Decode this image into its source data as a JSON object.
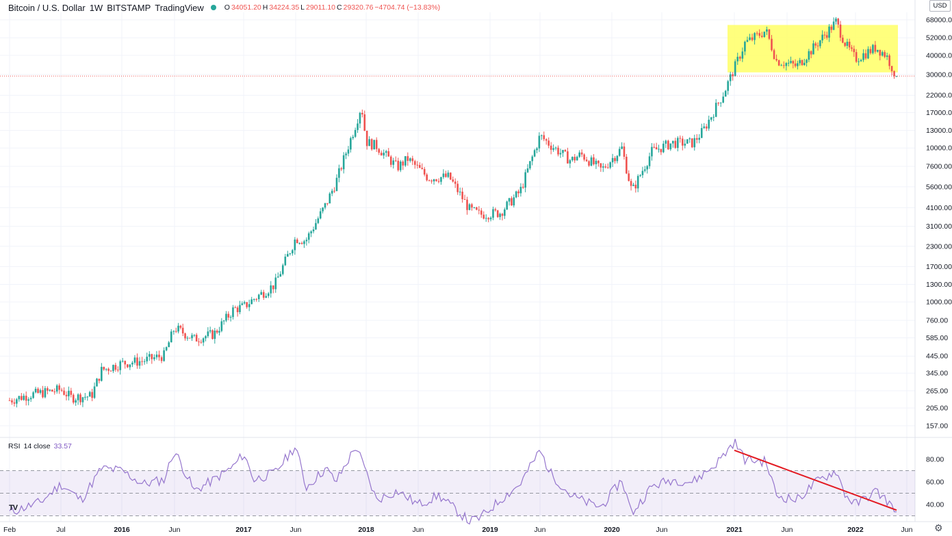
{
  "header": {
    "symbol": "Bitcoin / U.S. Dollar",
    "interval": "1W",
    "exchange": "BITSTAMP",
    "source": "TradingView",
    "open_label": "O",
    "open": "34051.20",
    "high_label": "H",
    "high": "34224.35",
    "low_label": "L",
    "low": "29011.10",
    "close_label": "C",
    "close": "29320.76",
    "change": "−4704.74 (−13.83%)"
  },
  "currency_button": "USD",
  "rsi_header": {
    "name": "RSI",
    "params": "14 close",
    "value": "33.57"
  },
  "chart_data": {
    "type": "candlestick",
    "price_scale": "log",
    "y_tick_labels": [
      "68000.00",
      "52000.00",
      "40000.00",
      "30000.00",
      "22000.00",
      "17000.00",
      "13000.00",
      "10000.00",
      "7600.00",
      "5600.00",
      "4100.00",
      "3100.00",
      "2300.00",
      "1700.00",
      "1300.00",
      "1000.00",
      "760.00",
      "585.00",
      "445.00",
      "345.00",
      "265.00",
      "205.00",
      "157.00"
    ],
    "x_tick_labels": [
      "Feb",
      "Jul",
      "2016",
      "Jun",
      "2017",
      "Jun",
      "2018",
      "Jun",
      "2019",
      "Jun",
      "2020",
      "Jun",
      "2021",
      "Jun",
      "2022",
      "Jun"
    ],
    "x_tick_bold": [
      "2016",
      "2017",
      "2018",
      "2019",
      "2020",
      "2021",
      "2022"
    ],
    "price_key_points": [
      [
        "2015-02",
        230
      ],
      [
        "2015-04",
        250
      ],
      [
        "2015-07",
        270
      ],
      [
        "2015-08",
        240
      ],
      [
        "2015-10",
        245
      ],
      [
        "2015-11",
        360
      ],
      [
        "2016-01",
        400
      ],
      [
        "2016-03",
        415
      ],
      [
        "2016-05",
        450
      ],
      [
        "2016-06",
        680
      ],
      [
        "2016-08",
        575
      ],
      [
        "2016-10",
        620
      ],
      [
        "2016-12",
        900
      ],
      [
        "2017-01",
        930
      ],
      [
        "2017-02",
        1050
      ],
      [
        "2017-04",
        1300
      ],
      [
        "2017-06",
        2600
      ],
      [
        "2017-07",
        2500
      ],
      [
        "2017-09",
        4300
      ],
      [
        "2017-10",
        6000
      ],
      [
        "2017-12",
        14500
      ],
      [
        "2017-12-17",
        19000
      ],
      [
        "2018-01",
        11000
      ],
      [
        "2018-02",
        10300
      ],
      [
        "2018-04",
        7500
      ],
      [
        "2018-05",
        8500
      ],
      [
        "2018-07",
        6400
      ],
      [
        "2018-09",
        6500
      ],
      [
        "2018-11",
        4000
      ],
      [
        "2018-12",
        3700
      ],
      [
        "2019-02",
        3800
      ],
      [
        "2019-04",
        5200
      ],
      [
        "2019-06",
        12000
      ],
      [
        "2019-07",
        10500
      ],
      [
        "2019-09",
        8300
      ],
      [
        "2019-10",
        9100
      ],
      [
        "2019-12",
        7200
      ],
      [
        "2020-02",
        10000
      ],
      [
        "2020-03",
        5200
      ],
      [
        "2020-05",
        9500
      ],
      [
        "2020-07",
        10800
      ],
      [
        "2020-09",
        10800
      ],
      [
        "2020-10",
        13000
      ],
      [
        "2020-12",
        23000
      ],
      [
        "2021-01",
        33000
      ],
      [
        "2021-02",
        48000
      ],
      [
        "2021-04",
        58000
      ],
      [
        "2021-05",
        37000
      ],
      [
        "2021-07",
        34000
      ],
      [
        "2021-09",
        47000
      ],
      [
        "2021-11",
        66000
      ],
      [
        "2021-12",
        47000
      ],
      [
        "2022-01",
        38000
      ],
      [
        "2022-03",
        45000
      ],
      [
        "2022-04",
        40000
      ],
      [
        "2022-05",
        29320.76
      ]
    ],
    "current_price_line": 29320.76,
    "highlight_zone": {
      "from": "2021-01",
      "to": "2022-05",
      "price_low": 31000,
      "price_high": 63000,
      "color": "#ffff66"
    },
    "rsi": {
      "period": 14,
      "y_tick_labels": [
        "80.00",
        "60.00",
        "40.00"
      ],
      "band": [
        30,
        70
      ],
      "midline": 50,
      "key_points": [
        [
          "2015-02",
          33
        ],
        [
          "2015-05",
          42
        ],
        [
          "2015-07",
          58
        ],
        [
          "2015-09",
          44
        ],
        [
          "2015-11",
          72
        ],
        [
          "2016-01",
          70
        ],
        [
          "2016-03",
          58
        ],
        [
          "2016-05",
          62
        ],
        [
          "2016-06",
          88
        ],
        [
          "2016-08",
          52
        ],
        [
          "2016-10",
          62
        ],
        [
          "2016-12",
          74
        ],
        [
          "2017-01",
          85
        ],
        [
          "2017-02",
          62
        ],
        [
          "2017-04",
          68
        ],
        [
          "2017-06",
          92
        ],
        [
          "2017-07",
          55
        ],
        [
          "2017-09",
          72
        ],
        [
          "2017-10",
          60
        ],
        [
          "2017-12",
          92
        ],
        [
          "2018-02",
          44
        ],
        [
          "2018-04",
          52
        ],
        [
          "2018-06",
          40
        ],
        [
          "2018-08",
          48
        ],
        [
          "2018-11",
          25
        ],
        [
          "2018-12",
          28
        ],
        [
          "2019-02",
          44
        ],
        [
          "2019-04",
          58
        ],
        [
          "2019-06",
          88
        ],
        [
          "2019-07",
          68
        ],
        [
          "2019-09",
          48
        ],
        [
          "2019-11",
          40
        ],
        [
          "2019-12",
          38
        ],
        [
          "2020-02",
          62
        ],
        [
          "2020-03",
          32
        ],
        [
          "2020-05",
          56
        ],
        [
          "2020-07",
          62
        ],
        [
          "2020-09",
          60
        ],
        [
          "2020-11",
          74
        ],
        [
          "2020-12",
          84
        ],
        [
          "2021-01",
          96
        ],
        [
          "2021-02",
          80
        ],
        [
          "2021-04",
          78
        ],
        [
          "2021-05",
          48
        ],
        [
          "2021-07",
          44
        ],
        [
          "2021-09",
          60
        ],
        [
          "2021-11",
          70
        ],
        [
          "2021-12",
          48
        ],
        [
          "2022-01",
          40
        ],
        [
          "2022-03",
          52
        ],
        [
          "2022-04",
          44
        ],
        [
          "2022-05",
          33.57
        ]
      ],
      "trendline": {
        "from": [
          "2021-01",
          88
        ],
        "to": [
          "2022-05",
          35
        ],
        "color": "#e31b23"
      }
    }
  }
}
